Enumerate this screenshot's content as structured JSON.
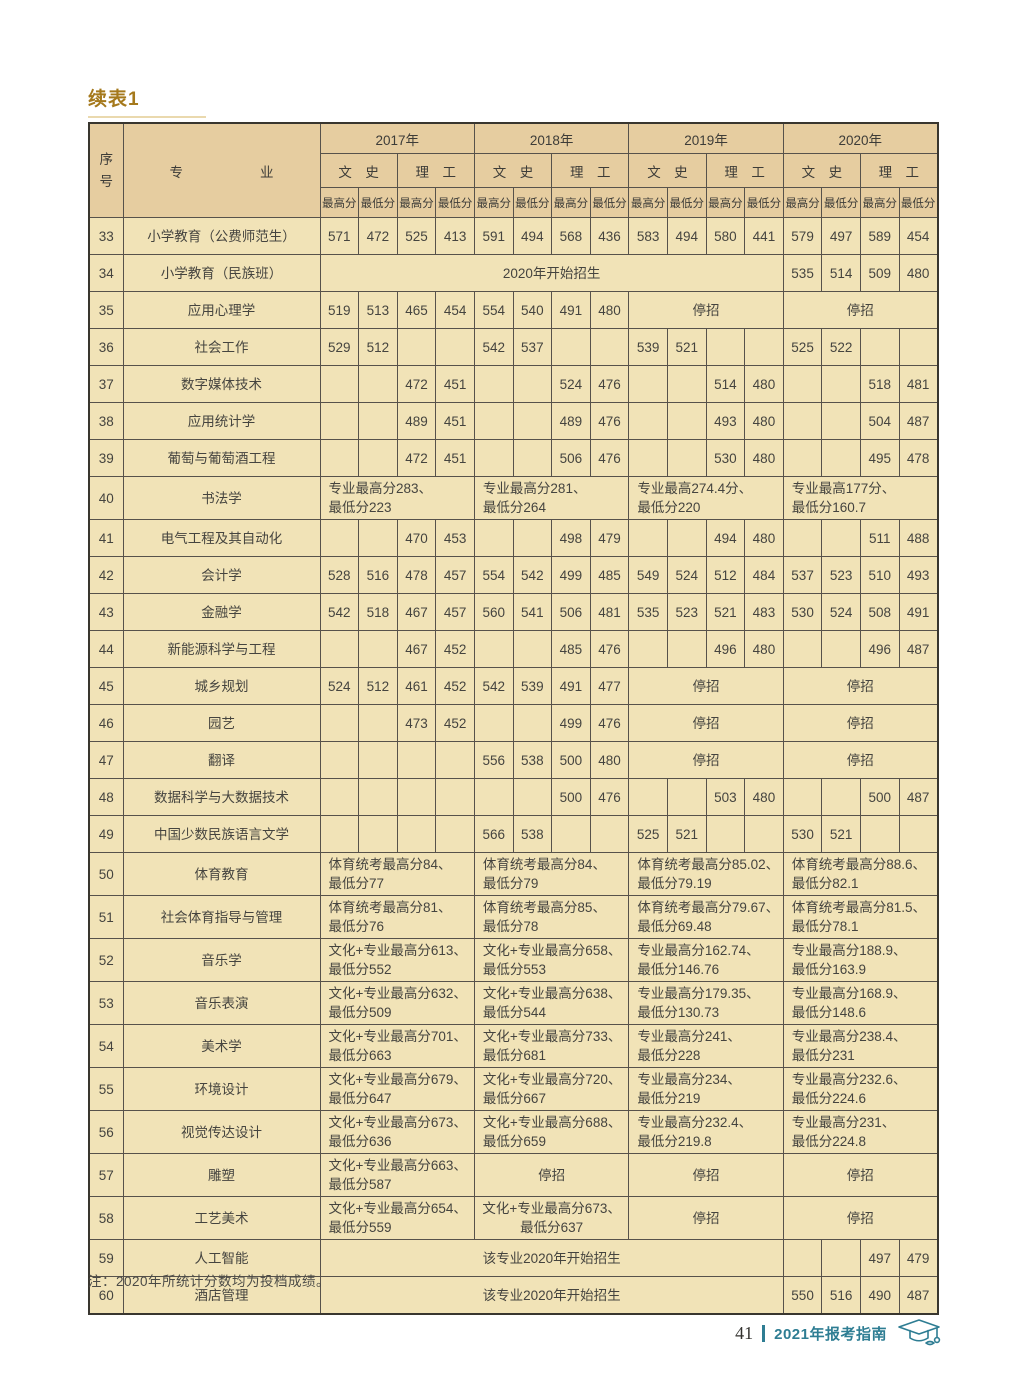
{
  "page": {
    "title": "续表1",
    "note": "注：2020年所统计分数均为投档成绩。",
    "footer": {
      "page_number": "41",
      "guide_title": "2021年报考指南"
    }
  },
  "colors": {
    "header_bg": "#e6cda0",
    "cell_bg": "#f1e3b7",
    "border": "#57524b",
    "title_gold": "#a5791c",
    "footer_accent": "#2e7d93"
  },
  "table": {
    "header": {
      "no_label": "序\n号",
      "major_label": "专业",
      "years": [
        "2017年",
        "2018年",
        "2019年",
        "2020年"
      ],
      "streams": [
        "文　史",
        "理　工"
      ],
      "score_labels": [
        "最高分",
        "最低分"
      ]
    },
    "rows": [
      {
        "no": "33",
        "major": "小学教育（公费师范生）",
        "cells": [
          "571",
          "472",
          "525",
          "413",
          "591",
          "494",
          "568",
          "436",
          "583",
          "494",
          "580",
          "441",
          "579",
          "497",
          "589",
          "454"
        ]
      },
      {
        "no": "34",
        "major": "小学教育（民族班）",
        "cells": [
          {
            "t": "2020年开始招生",
            "s": 12
          },
          "535",
          "514",
          "509",
          "480"
        ]
      },
      {
        "no": "35",
        "major": "应用心理学",
        "cells": [
          "519",
          "513",
          "465",
          "454",
          "554",
          "540",
          "491",
          "480",
          {
            "t": "停招",
            "s": 4
          },
          {
            "t": "停招",
            "s": 4
          }
        ]
      },
      {
        "no": "36",
        "major": "社会工作",
        "cells": [
          "529",
          "512",
          "",
          "",
          "542",
          "537",
          "",
          "",
          "539",
          "521",
          "",
          "",
          "525",
          "522",
          "",
          ""
        ]
      },
      {
        "no": "37",
        "major": "数字媒体技术",
        "cells": [
          "",
          "",
          "472",
          "451",
          "",
          "",
          "524",
          "476",
          "",
          "",
          "514",
          "480",
          "",
          "",
          "518",
          "481"
        ]
      },
      {
        "no": "38",
        "major": "应用统计学",
        "cells": [
          "",
          "",
          "489",
          "451",
          "",
          "",
          "489",
          "476",
          "",
          "",
          "493",
          "480",
          "",
          "",
          "504",
          "487"
        ]
      },
      {
        "no": "39",
        "major": "葡萄与葡萄酒工程",
        "cells": [
          "",
          "",
          "472",
          "451",
          "",
          "",
          "506",
          "476",
          "",
          "",
          "530",
          "480",
          "",
          "",
          "495",
          "478"
        ]
      },
      {
        "no": "40",
        "major": "书法学",
        "cells": [
          {
            "t": "专业最高分283、\n最低分223",
            "s": 4,
            "a": "l"
          },
          {
            "t": "专业最高分281、\n最低分264",
            "s": 4,
            "a": "l"
          },
          {
            "t": "专业最高274.4分、\n最低分220",
            "s": 4,
            "a": "l"
          },
          {
            "t": "专业最高177分、\n最低分160.7",
            "s": 4,
            "a": "l"
          }
        ]
      },
      {
        "no": "41",
        "major": "电气工程及其自动化",
        "cells": [
          "",
          "",
          "470",
          "453",
          "",
          "",
          "498",
          "479",
          "",
          "",
          "494",
          "480",
          "",
          "",
          "511",
          "488"
        ]
      },
      {
        "no": "42",
        "major": "会计学",
        "cells": [
          "528",
          "516",
          "478",
          "457",
          "554",
          "542",
          "499",
          "485",
          "549",
          "524",
          "512",
          "484",
          "537",
          "523",
          "510",
          "493"
        ]
      },
      {
        "no": "43",
        "major": "金融学",
        "cells": [
          "542",
          "518",
          "467",
          "457",
          "560",
          "541",
          "506",
          "481",
          "535",
          "523",
          "521",
          "483",
          "530",
          "524",
          "508",
          "491"
        ]
      },
      {
        "no": "44",
        "major": "新能源科学与工程",
        "cells": [
          "",
          "",
          "467",
          "452",
          "",
          "",
          "485",
          "476",
          "",
          "",
          "496",
          "480",
          "",
          "",
          "496",
          "487"
        ]
      },
      {
        "no": "45",
        "major": "城乡规划",
        "cells": [
          "524",
          "512",
          "461",
          "452",
          "542",
          "539",
          "491",
          "477",
          {
            "t": "停招",
            "s": 4
          },
          {
            "t": "停招",
            "s": 4
          }
        ]
      },
      {
        "no": "46",
        "major": "园艺",
        "cells": [
          "",
          "",
          "473",
          "452",
          "",
          "",
          "499",
          "476",
          {
            "t": "停招",
            "s": 4
          },
          {
            "t": "停招",
            "s": 4
          }
        ]
      },
      {
        "no": "47",
        "major": "翻译",
        "cells": [
          "",
          "",
          "",
          "",
          "556",
          "538",
          "500",
          "480",
          {
            "t": "停招",
            "s": 4
          },
          {
            "t": "停招",
            "s": 4
          }
        ]
      },
      {
        "no": "48",
        "major": "数据科学与大数据技术",
        "cells": [
          "",
          "",
          "",
          "",
          "",
          "",
          "500",
          "476",
          "",
          "",
          "503",
          "480",
          "",
          "",
          "500",
          "487"
        ]
      },
      {
        "no": "49",
        "major": "中国少数民族语言文学",
        "cells": [
          "",
          "",
          "",
          "",
          "566",
          "538",
          "",
          "",
          "525",
          "521",
          "",
          "",
          "530",
          "521",
          "",
          ""
        ]
      },
      {
        "no": "50",
        "major": "体育教育",
        "cells": [
          {
            "t": "体育统考最高分84、\n最低分77",
            "s": 4,
            "a": "l"
          },
          {
            "t": "体育统考最高分84、\n最低分79",
            "s": 4,
            "a": "l"
          },
          {
            "t": "体育统考最高分85.02、\n最低分79.19",
            "s": 4,
            "a": "l"
          },
          {
            "t": "体育统考最高分88.6、\n最低分82.1",
            "s": 4,
            "a": "l"
          }
        ]
      },
      {
        "no": "51",
        "major": "社会体育指导与管理",
        "cells": [
          {
            "t": "体育统考最高分81、\n最低分76",
            "s": 4,
            "a": "l"
          },
          {
            "t": "体育统考最高分85、\n最低分78",
            "s": 4,
            "a": "l"
          },
          {
            "t": "体育统考最高分79.67、\n最低分69.48",
            "s": 4,
            "a": "l"
          },
          {
            "t": "体育统考最高分81.5、\n最低分78.1",
            "s": 4,
            "a": "l"
          }
        ]
      },
      {
        "no": "52",
        "major": "音乐学",
        "cells": [
          {
            "t": "文化+专业最高分613、\n最低分552",
            "s": 4,
            "a": "l"
          },
          {
            "t": "文化+专业最高分658、\n最低分553",
            "s": 4,
            "a": "l"
          },
          {
            "t": "专业最高分162.74、\n最低分146.76",
            "s": 4,
            "a": "l"
          },
          {
            "t": "专业最高分188.9、\n最低分163.9",
            "s": 4,
            "a": "l"
          }
        ]
      },
      {
        "no": "53",
        "major": "音乐表演",
        "cells": [
          {
            "t": "文化+专业最高分632、\n最低分509",
            "s": 4,
            "a": "l"
          },
          {
            "t": "文化+专业最高分638、\n最低分544",
            "s": 4,
            "a": "l"
          },
          {
            "t": "专业最高分179.35、\n最低分130.73",
            "s": 4,
            "a": "l"
          },
          {
            "t": "专业最高分168.9、\n最低分148.6",
            "s": 4,
            "a": "l"
          }
        ]
      },
      {
        "no": "54",
        "major": "美术学",
        "cells": [
          {
            "t": "文化+专业最高分701、\n最低分663",
            "s": 4,
            "a": "l"
          },
          {
            "t": "文化+专业最高分733、\n最低分681",
            "s": 4,
            "a": "l"
          },
          {
            "t": "专业最高分241、\n最低分228",
            "s": 4,
            "a": "l"
          },
          {
            "t": "专业最高分238.4、\n最低分231",
            "s": 4,
            "a": "l"
          }
        ]
      },
      {
        "no": "55",
        "major": "环境设计",
        "cells": [
          {
            "t": "文化+专业最高分679、\n最低分647",
            "s": 4,
            "a": "l"
          },
          {
            "t": "文化+专业最高分720、\n最低分667",
            "s": 4,
            "a": "l"
          },
          {
            "t": "专业最高分234、\n最低分219",
            "s": 4,
            "a": "l"
          },
          {
            "t": "专业最高分232.6、\n最低分224.6",
            "s": 4,
            "a": "l"
          }
        ]
      },
      {
        "no": "56",
        "major": "视觉传达设计",
        "cells": [
          {
            "t": "文化+专业最高分673、\n最低分636",
            "s": 4,
            "a": "l"
          },
          {
            "t": "文化+专业最高分688、\n最低分659",
            "s": 4,
            "a": "l"
          },
          {
            "t": "专业最高分232.4、\n最低分219.8",
            "s": 4,
            "a": "l"
          },
          {
            "t": "专业最高分231、\n最低分224.8",
            "s": 4,
            "a": "l"
          }
        ]
      },
      {
        "no": "57",
        "major": "雕塑",
        "cells": [
          {
            "t": "文化+专业最高分663、\n最低分587",
            "s": 4,
            "a": "l"
          },
          {
            "t": "停招",
            "s": 4
          },
          {
            "t": "停招",
            "s": 4
          },
          {
            "t": "停招",
            "s": 4
          }
        ]
      },
      {
        "no": "58",
        "major": "工艺美术",
        "cells": [
          {
            "t": "文化+专业最高分654、\n最低分559",
            "s": 4,
            "a": "l"
          },
          {
            "t": "文化+专业最高分673、\n最低分637",
            "s": 4
          },
          {
            "t": "停招",
            "s": 4
          },
          {
            "t": "停招",
            "s": 4
          }
        ]
      },
      {
        "no": "59",
        "major": "人工智能",
        "cells": [
          {
            "t": "该专业2020年开始招生",
            "s": 12
          },
          "",
          "",
          "497",
          "479"
        ]
      },
      {
        "no": "60",
        "major": "酒店管理",
        "cells": [
          {
            "t": "该专业2020年开始招生",
            "s": 12
          },
          "550",
          "516",
          "490",
          "487"
        ]
      }
    ]
  }
}
